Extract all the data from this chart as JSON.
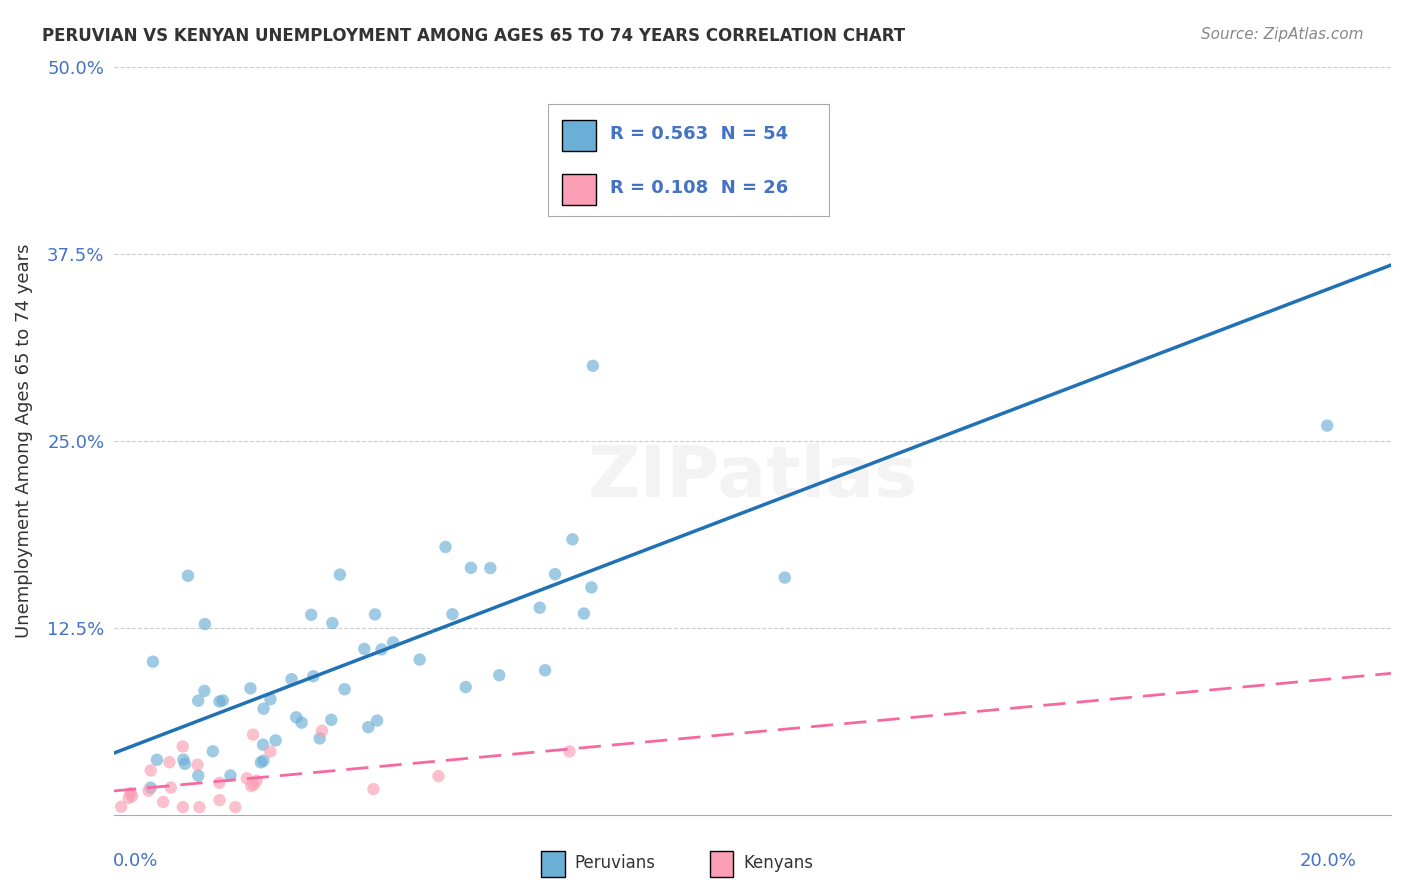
{
  "title": "PERUVIAN VS KENYAN UNEMPLOYMENT AMONG AGES 65 TO 74 YEARS CORRELATION CHART",
  "source": "Source: ZipAtlas.com",
  "ylabel": "Unemployment Among Ages 65 to 74 years",
  "xlim": [
    0.0,
    0.2
  ],
  "ylim": [
    0.0,
    0.5
  ],
  "yticks": [
    0.0,
    0.125,
    0.25,
    0.375,
    0.5
  ],
  "ytick_labels": [
    "",
    "12.5%",
    "25.0%",
    "37.5%",
    "50.0%"
  ],
  "legend_peruvians": "Peruvians",
  "legend_kenyans": "Kenyans",
  "r_peruvian": 0.563,
  "n_peruvian": 54,
  "r_kenyan": 0.108,
  "n_kenyan": 26,
  "color_peruvian": "#6baed6",
  "color_kenyan": "#fa9fb5",
  "color_peruvian_line": "#2171b5",
  "color_kenyan_line": "#f768a1",
  "background_color": "#ffffff",
  "watermark": "ZIPatlas"
}
